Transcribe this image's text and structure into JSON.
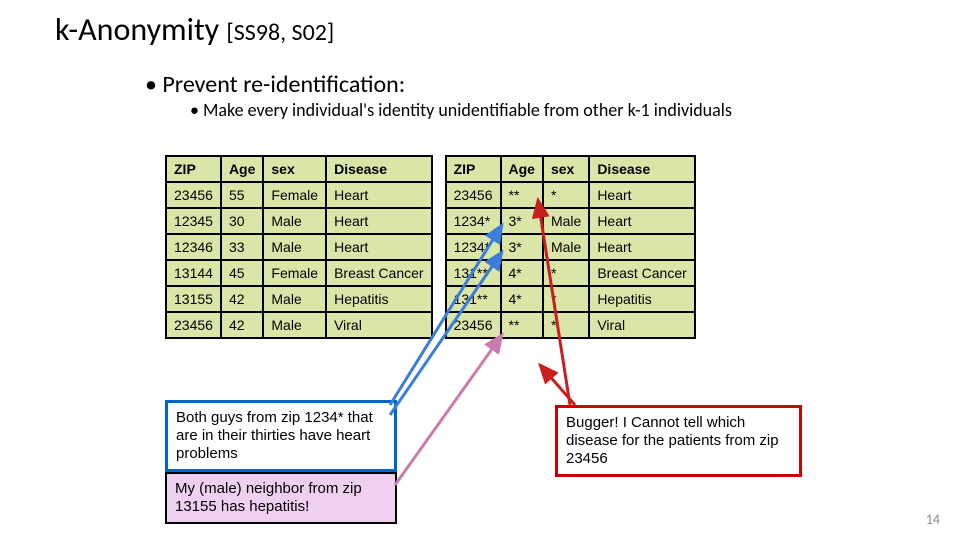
{
  "title_main": "k-Anonymity ",
  "title_ref": "[SS98, S02]",
  "bullet1": "Prevent re-identification:",
  "bullet2": "Make  every individual's identity unidentifiable from other k-1 individuals",
  "table_left": {
    "columns": [
      "ZIP",
      "Age",
      "sex",
      "Disease"
    ],
    "rows": [
      [
        "23456",
        "55",
        "Female",
        "Heart"
      ],
      [
        "12345",
        "30",
        "Male",
        "Heart"
      ],
      [
        "12346",
        "33",
        "Male",
        "Heart"
      ],
      [
        "13144",
        "45",
        "Female",
        "Breast Cancer"
      ],
      [
        "13155",
        "42",
        "Male",
        "Hepatitis"
      ],
      [
        "23456",
        "42",
        "Male",
        "Viral"
      ]
    ]
  },
  "table_right": {
    "columns": [
      "ZIP",
      "Age",
      "sex",
      "Disease"
    ],
    "rows": [
      [
        "23456",
        "**",
        "*",
        "Heart"
      ],
      [
        "1234*",
        "3*",
        "Male",
        "Heart"
      ],
      [
        "1234*",
        "3*",
        "Male",
        "Heart"
      ],
      [
        "131**",
        "4*",
        "*",
        "Breast Cancer"
      ],
      [
        "131**",
        "4*",
        "*",
        "Hepatitis"
      ],
      [
        "23456",
        "**",
        "*",
        "Viral"
      ]
    ]
  },
  "callout_blue": "Both guys from zip 1234* that are in their thirties have heart problems",
  "callout_pink": "My (male) neighbor from zip 13155 has hepatitis!",
  "callout_red": "Bugger! I Cannot tell which disease for the patients from zip 23456",
  "page_number": "14",
  "colors": {
    "table_bg": "#d9e6a8",
    "blue_border": "#0066cc",
    "red_border": "#cc0000",
    "pink_bg": "#f0d0f0",
    "arrow_blue": "#3b7dd8",
    "arrow_red": "#c81e1e",
    "arrow_pink": "#c97bb0"
  }
}
